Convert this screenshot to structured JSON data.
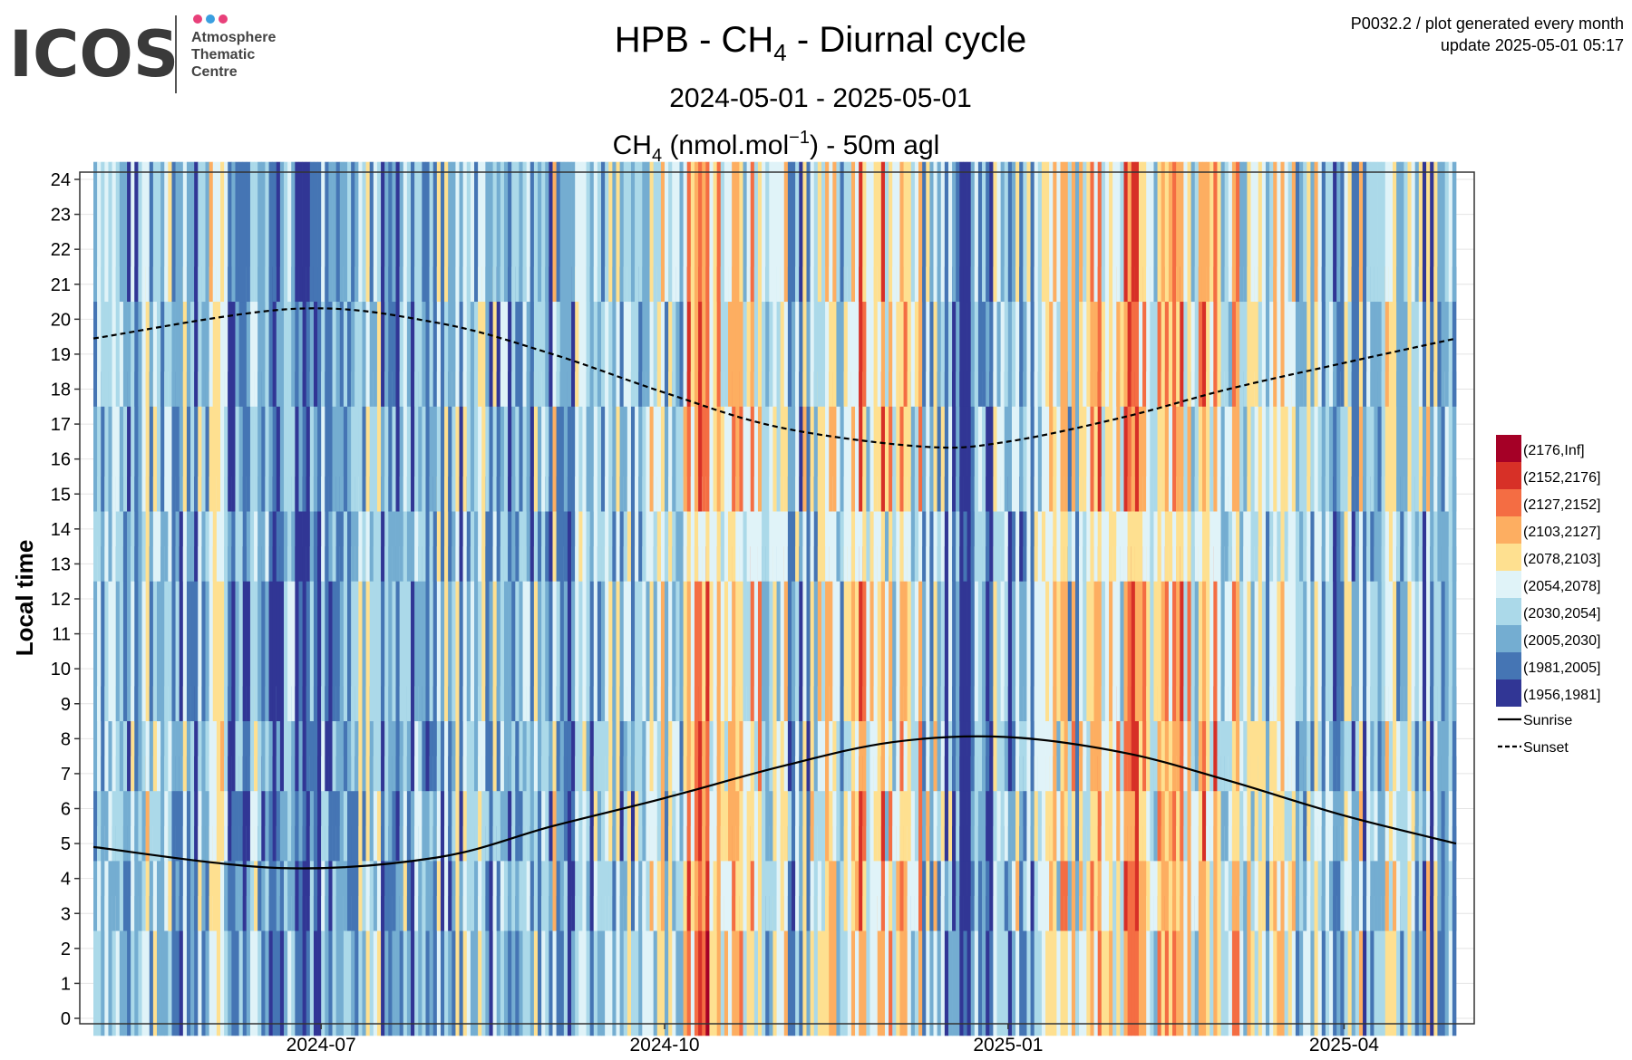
{
  "logo": {
    "brand": "ICOS",
    "line1": "Atmosphere",
    "line2": "Thematic",
    "line3": "Centre",
    "dot_colors": [
      "#e8407a",
      "#3a9fe0",
      "#e8407a"
    ]
  },
  "header_right": {
    "line1": "P0032.2 / plot generated every month",
    "line2": "update  2025-05-01 05:17"
  },
  "chart_data": {
    "type": "heatmap",
    "title_parts": {
      "pre": "HPB - CH",
      "sub": "4",
      "post": " - Diurnal cycle"
    },
    "subtitle": "2024-05-01 - 2025-05-01",
    "unit_parts": {
      "pre": "CH",
      "sub": "4",
      "mid": " (nmol.mol",
      "sup": "−1",
      "post": ") - 50m agl"
    },
    "ylabel": "Local time",
    "x_range": [
      "2024-05-01",
      "2025-05-01"
    ],
    "x_ticks": [
      "2024-07",
      "2024-10",
      "2025-01",
      "2025-04"
    ],
    "x_tick_dates": [
      "2024-07-01",
      "2024-10-01",
      "2025-01-01",
      "2025-04-01"
    ],
    "y_ticks": [
      "0",
      "1",
      "2",
      "3",
      "4",
      "5",
      "6",
      "7",
      "8",
      "9",
      "10",
      "11",
      "12",
      "13",
      "14",
      "15",
      "16",
      "17",
      "18",
      "19",
      "20",
      "21",
      "22",
      "23",
      "24"
    ],
    "y_range": [
      0,
      24
    ],
    "grid": true,
    "legend_position": "right",
    "color_bins": [
      {
        "label": "(2176,Inf]",
        "color": "#a50026"
      },
      {
        "label": "(2152,2176]",
        "color": "#d73027"
      },
      {
        "label": "(2127,2152]",
        "color": "#f46d43"
      },
      {
        "label": "(2103,2127]",
        "color": "#fdae61"
      },
      {
        "label": "(2078,2103]",
        "color": "#fee090"
      },
      {
        "label": "(2054,2078]",
        "color": "#e0f3f8"
      },
      {
        "label": "(2030,2054]",
        "color": "#abd9e9"
      },
      {
        "label": "(2005,2030]",
        "color": "#74add1"
      },
      {
        "label": "(1981,2005]",
        "color": "#4575b4"
      },
      {
        "label": "(1956,1981]",
        "color": "#313695"
      }
    ],
    "lines": [
      {
        "name": "Sunrise",
        "style": "solid",
        "points": [
          [
            "2024-05-01",
            4.9
          ],
          [
            "2024-06-20",
            4.3
          ],
          [
            "2024-08-01",
            4.6
          ],
          [
            "2024-09-01",
            5.5
          ],
          [
            "2024-10-01",
            6.3
          ],
          [
            "2024-11-01",
            7.2
          ],
          [
            "2024-12-01",
            7.9
          ],
          [
            "2024-12-31",
            8.05
          ],
          [
            "2025-02-01",
            7.6
          ],
          [
            "2025-03-01",
            6.8
          ],
          [
            "2025-04-01",
            5.8
          ],
          [
            "2025-05-01",
            5.0
          ]
        ]
      },
      {
        "name": "Sunset",
        "style": "dashed",
        "points": [
          [
            "2024-05-01",
            19.45
          ],
          [
            "2024-06-24",
            20.3
          ],
          [
            "2024-08-01",
            19.9
          ],
          [
            "2024-09-01",
            19.0
          ],
          [
            "2024-10-01",
            17.9
          ],
          [
            "2024-11-01",
            16.9
          ],
          [
            "2024-12-10",
            16.35
          ],
          [
            "2025-01-01",
            16.5
          ],
          [
            "2025-02-01",
            17.2
          ],
          [
            "2025-03-01",
            18.0
          ],
          [
            "2025-04-01",
            18.75
          ],
          [
            "2025-05-01",
            19.45
          ]
        ]
      }
    ]
  }
}
